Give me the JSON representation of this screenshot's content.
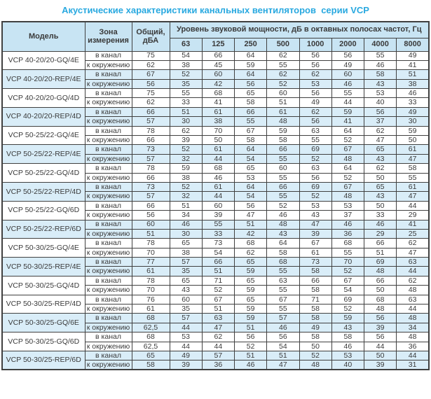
{
  "title": "Акустические характеристики канальных вентиляторов  серии VCP",
  "colors": {
    "title": "#29a9e0",
    "header_bg": "#c8e4f3",
    "stripe_bg": "#d9edf8",
    "border": "#404040",
    "text": "#3a3a3a"
  },
  "table": {
    "headers": {
      "model": "Модель",
      "zone": "Зона измерения",
      "total": "Общий, дБА",
      "spl": "Уровень звуковой мощности, дБ в октавных полосах частот, Гц",
      "frequencies": [
        "63",
        "125",
        "250",
        "500",
        "1000",
        "2000",
        "4000",
        "8000"
      ]
    },
    "models": [
      {
        "name": "VCP 40-20/20-GQ/4E",
        "shaded": false,
        "rows": [
          {
            "zone": "в канал",
            "total": "75",
            "bands": [
              "54",
              "66",
              "64",
              "62",
              "56",
              "56",
              "55",
              "49"
            ]
          },
          {
            "zone": "к окружению",
            "total": "62",
            "bands": [
              "38",
              "45",
              "59",
              "55",
              "56",
              "49",
              "46",
              "41"
            ]
          }
        ]
      },
      {
        "name": "VCP 40-20/20-REP/4E",
        "shaded": true,
        "rows": [
          {
            "zone": "в канал",
            "total": "67",
            "bands": [
              "52",
              "60",
              "64",
              "62",
              "62",
              "60",
              "58",
              "51"
            ]
          },
          {
            "zone": "к окружению",
            "total": "56",
            "bands": [
              "35",
              "42",
              "56",
              "52",
              "53",
              "46",
              "43",
              "38"
            ]
          }
        ]
      },
      {
        "name": "VCP 40-20/20-GQ/4D",
        "shaded": false,
        "rows": [
          {
            "zone": "в канал",
            "total": "75",
            "bands": [
              "55",
              "68",
              "65",
              "60",
              "56",
              "55",
              "53",
              "46"
            ]
          },
          {
            "zone": "к окружению",
            "total": "62",
            "bands": [
              "33",
              "41",
              "58",
              "51",
              "49",
              "44",
              "40",
              "33"
            ]
          }
        ]
      },
      {
        "name": "VCP 40-20/20-REP/4D",
        "shaded": true,
        "rows": [
          {
            "zone": "в канал",
            "total": "66",
            "bands": [
              "51",
              "61",
              "66",
              "61",
              "62",
              "59",
              "56",
              "49"
            ]
          },
          {
            "zone": "к окружению",
            "total": "57",
            "bands": [
              "30",
              "38",
              "55",
              "48",
              "56",
              "41",
              "37",
              "30"
            ]
          }
        ]
      },
      {
        "name": "VCP 50-25/22-GQ/4E",
        "shaded": false,
        "rows": [
          {
            "zone": "в канал",
            "total": "78",
            "bands": [
              "62",
              "70",
              "67",
              "59",
              "63",
              "64",
              "62",
              "59"
            ]
          },
          {
            "zone": "к окружению",
            "total": "66",
            "bands": [
              "39",
              "50",
              "58",
              "58",
              "55",
              "52",
              "47",
              "50"
            ]
          }
        ]
      },
      {
        "name": "VCP 50-25/22-REP/4E",
        "shaded": true,
        "rows": [
          {
            "zone": "в канал",
            "total": "73",
            "bands": [
              "52",
              "61",
              "64",
              "66",
              "69",
              "67",
              "65",
              "61"
            ]
          },
          {
            "zone": "к окружению",
            "total": "57",
            "bands": [
              "32",
              "44",
              "54",
              "55",
              "52",
              "48",
              "43",
              "47"
            ]
          }
        ]
      },
      {
        "name": "VCP 50-25/22-GQ/4D",
        "shaded": false,
        "rows": [
          {
            "zone": "в канал",
            "total": "78",
            "bands": [
              "59",
              "68",
              "65",
              "60",
              "63",
              "64",
              "62",
              "58"
            ]
          },
          {
            "zone": "к окружению",
            "total": "66",
            "bands": [
              "38",
              "46",
              "53",
              "55",
              "56",
              "52",
              "50",
              "55"
            ]
          }
        ]
      },
      {
        "name": "VCP 50-25/22-REP/4D",
        "shaded": true,
        "rows": [
          {
            "zone": "в канал",
            "total": "73",
            "bands": [
              "52",
              "61",
              "64",
              "66",
              "69",
              "67",
              "65",
              "61"
            ]
          },
          {
            "zone": "к окружению",
            "total": "57",
            "bands": [
              "32",
              "44",
              "54",
              "55",
              "52",
              "48",
              "43",
              "47"
            ]
          }
        ]
      },
      {
        "name": "VCP 50-25/22-GQ/6D",
        "shaded": false,
        "rows": [
          {
            "zone": "в канал",
            "total": "66",
            "bands": [
              "51",
              "60",
              "56",
              "52",
              "53",
              "53",
              "50",
              "44"
            ]
          },
          {
            "zone": "к окружению",
            "total": "56",
            "bands": [
              "34",
              "39",
              "47",
              "46",
              "43",
              "37",
              "33",
              "29"
            ]
          }
        ]
      },
      {
        "name": "VCP 50-25/22-REP/6D",
        "shaded": true,
        "rows": [
          {
            "zone": "в канал",
            "total": "60",
            "bands": [
              "46",
              "55",
              "51",
              "48",
              "47",
              "46",
              "46",
              "41"
            ]
          },
          {
            "zone": "к окружению",
            "total": "51",
            "bands": [
              "30",
              "33",
              "42",
              "43",
              "39",
              "36",
              "29",
              "25"
            ]
          }
        ]
      },
      {
        "name": "VCP 50-30/25-GQ/4E",
        "shaded": false,
        "rows": [
          {
            "zone": "в канал",
            "total": "78",
            "bands": [
              "65",
              "73",
              "68",
              "64",
              "67",
              "68",
              "66",
              "62"
            ]
          },
          {
            "zone": "к окружению",
            "total": "70",
            "bands": [
              "38",
              "54",
              "62",
              "58",
              "61",
              "55",
              "51",
              "47"
            ]
          }
        ]
      },
      {
        "name": "VCP 50-30/25-REP/4E",
        "shaded": true,
        "rows": [
          {
            "zone": "в канал",
            "total": "77",
            "bands": [
              "57",
              "66",
              "65",
              "68",
              "73",
              "70",
              "69",
              "63"
            ]
          },
          {
            "zone": "к окружению",
            "total": "61",
            "bands": [
              "35",
              "51",
              "59",
              "55",
              "58",
              "52",
              "48",
              "44"
            ]
          }
        ]
      },
      {
        "name": "VCP 50-30/25-GQ/4D",
        "shaded": false,
        "rows": [
          {
            "zone": "в канал",
            "total": "78",
            "bands": [
              "65",
              "71",
              "65",
              "63",
              "66",
              "67",
              "66",
              "62"
            ]
          },
          {
            "zone": "к окружению",
            "total": "70",
            "bands": [
              "43",
              "52",
              "59",
              "55",
              "58",
              "54",
              "50",
              "48"
            ]
          }
        ]
      },
      {
        "name": "VCP 50-30/25-REP/4D",
        "shaded": false,
        "rows": [
          {
            "zone": "в канал",
            "total": "76",
            "bands": [
              "60",
              "67",
              "65",
              "67",
              "71",
              "69",
              "68",
              "63"
            ]
          },
          {
            "zone": "к окружению",
            "total": "61",
            "bands": [
              "35",
              "51",
              "59",
              "55",
              "58",
              "52",
              "48",
              "44"
            ]
          }
        ]
      },
      {
        "name": "VCP 50-30/25-GQ/6E",
        "shaded": true,
        "rows": [
          {
            "zone": "в канал",
            "total": "68",
            "bands": [
              "57",
              "63",
              "59",
              "57",
              "58",
              "59",
              "56",
              "48"
            ]
          },
          {
            "zone": "к окружению",
            "total": "62,5",
            "bands": [
              "44",
              "47",
              "51",
              "46",
              "49",
              "43",
              "39",
              "34"
            ]
          }
        ]
      },
      {
        "name": "VCP 50-30/25-GQ/6D",
        "shaded": false,
        "rows": [
          {
            "zone": "в канал",
            "total": "68",
            "bands": [
              "53",
              "62",
              "56",
              "56",
              "58",
              "58",
              "56",
              "48"
            ]
          },
          {
            "zone": "к окружению",
            "total": "62,5",
            "bands": [
              "44",
              "44",
              "52",
              "54",
              "50",
              "46",
              "44",
              "36"
            ]
          }
        ]
      },
      {
        "name": "VCP 50-30/25-REP/6D",
        "shaded": true,
        "rows": [
          {
            "zone": "в канал",
            "total": "65",
            "bands": [
              "49",
              "57",
              "51",
              "51",
              "52",
              "53",
              "50",
              "44"
            ]
          },
          {
            "zone": "к окружению",
            "total": "58",
            "bands": [
              "39",
              "36",
              "46",
              "47",
              "48",
              "40",
              "39",
              "31"
            ]
          }
        ]
      }
    ]
  }
}
